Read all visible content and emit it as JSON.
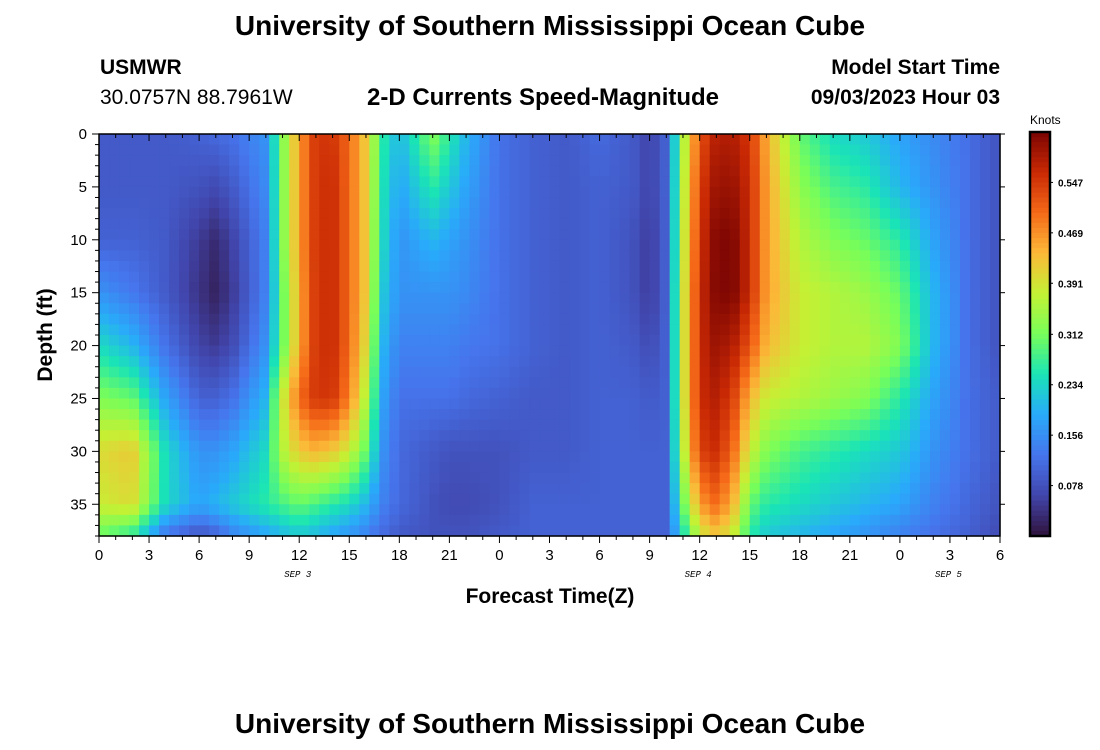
{
  "header": {
    "title": "University of Southern Mississippi Ocean Cube",
    "station": "USMWR",
    "coordinates": "30.0757N  88.7961W",
    "subtitle": "2-D Currents Speed-Magnitude",
    "model_start_label": "Model Start Time",
    "model_start_value": "09/03/2023 Hour 03"
  },
  "footer": {
    "title": "University of Southern Mississippi Ocean Cube"
  },
  "colors": {
    "background": "#ffffff",
    "text": "#000000"
  },
  "chart_data": {
    "type": "heatmap",
    "title": "2-D Currents Speed-Magnitude",
    "xlabel": "Forecast Time(Z)",
    "ylabel": "Depth (ft)",
    "colorbar_label": "Knots",
    "x_range_hours": [
      0,
      54
    ],
    "x_tick_labels": [
      "0",
      "3",
      "6",
      "9",
      "12",
      "15",
      "18",
      "21",
      "0",
      "3",
      "6",
      "9",
      "12",
      "15",
      "18",
      "21",
      "0",
      "3",
      "6"
    ],
    "date_labels": [
      {
        "label": "SEP 3",
        "at_hour": 12
      },
      {
        "label": "SEP 4",
        "at_hour": 36
      },
      {
        "label": "SEP 5",
        "at_hour": 51
      }
    ],
    "y_range_ft": [
      0,
      38
    ],
    "y_tick_labels": [
      "0",
      "5",
      "10",
      "15",
      "20",
      "25",
      "30",
      "35"
    ],
    "y_tick_values": [
      0,
      5,
      10,
      15,
      20,
      25,
      30,
      35
    ],
    "colorbar_range": [
      0.0,
      0.625
    ],
    "colorbar_tick_labels": [
      "0.547",
      "0.469",
      "0.391",
      "0.312",
      "0.234",
      "0.156",
      "0.078"
    ],
    "colorbar_tick_values": [
      0.547,
      0.469,
      0.391,
      0.312,
      0.234,
      0.156,
      0.078
    ],
    "time_hours": [
      0,
      2,
      4,
      6,
      7,
      8,
      10,
      11,
      12,
      13,
      14,
      15,
      16,
      17,
      18,
      20,
      21,
      22,
      24,
      26,
      28,
      30,
      32,
      33,
      34,
      35,
      36,
      37,
      38,
      39,
      40,
      42,
      44,
      46,
      48,
      50,
      52,
      54
    ],
    "depths_ft": [
      0,
      5,
      10,
      15,
      20,
      25,
      30,
      35,
      38
    ],
    "speed_knots": [
      [
        0.09,
        0.09,
        0.09,
        0.1,
        0.11,
        0.12,
        0.16,
        0.32,
        0.46,
        0.55,
        0.55,
        0.5,
        0.42,
        0.26,
        0.2,
        0.32,
        0.26,
        0.2,
        0.12,
        0.1,
        0.09,
        0.11,
        0.09,
        0.06,
        0.1,
        0.35,
        0.52,
        0.58,
        0.58,
        0.55,
        0.45,
        0.3,
        0.24,
        0.22,
        0.18,
        0.15,
        0.12,
        0.08
      ],
      [
        0.09,
        0.09,
        0.09,
        0.08,
        0.07,
        0.09,
        0.15,
        0.32,
        0.46,
        0.55,
        0.56,
        0.5,
        0.42,
        0.25,
        0.18,
        0.26,
        0.22,
        0.18,
        0.12,
        0.1,
        0.09,
        0.1,
        0.09,
        0.06,
        0.1,
        0.36,
        0.54,
        0.6,
        0.6,
        0.56,
        0.46,
        0.33,
        0.28,
        0.26,
        0.2,
        0.16,
        0.12,
        0.08
      ],
      [
        0.1,
        0.1,
        0.09,
        0.05,
        0.03,
        0.06,
        0.14,
        0.32,
        0.46,
        0.55,
        0.56,
        0.5,
        0.42,
        0.24,
        0.16,
        0.2,
        0.18,
        0.16,
        0.12,
        0.1,
        0.09,
        0.1,
        0.08,
        0.05,
        0.1,
        0.37,
        0.55,
        0.62,
        0.62,
        0.56,
        0.46,
        0.36,
        0.32,
        0.3,
        0.26,
        0.18,
        0.12,
        0.08
      ],
      [
        0.16,
        0.13,
        0.09,
        0.04,
        0.02,
        0.05,
        0.14,
        0.3,
        0.45,
        0.55,
        0.56,
        0.5,
        0.42,
        0.22,
        0.16,
        0.16,
        0.16,
        0.15,
        0.12,
        0.1,
        0.09,
        0.1,
        0.08,
        0.05,
        0.1,
        0.38,
        0.56,
        0.62,
        0.62,
        0.56,
        0.46,
        0.38,
        0.36,
        0.34,
        0.3,
        0.2,
        0.12,
        0.08
      ],
      [
        0.24,
        0.2,
        0.12,
        0.06,
        0.05,
        0.07,
        0.16,
        0.3,
        0.45,
        0.55,
        0.56,
        0.5,
        0.4,
        0.2,
        0.14,
        0.14,
        0.14,
        0.13,
        0.12,
        0.1,
        0.09,
        0.1,
        0.09,
        0.07,
        0.1,
        0.38,
        0.56,
        0.6,
        0.58,
        0.52,
        0.44,
        0.38,
        0.36,
        0.36,
        0.32,
        0.2,
        0.12,
        0.08
      ],
      [
        0.32,
        0.3,
        0.18,
        0.1,
        0.1,
        0.12,
        0.2,
        0.38,
        0.5,
        0.55,
        0.55,
        0.48,
        0.36,
        0.18,
        0.12,
        0.12,
        0.12,
        0.11,
        0.1,
        0.09,
        0.09,
        0.1,
        0.1,
        0.09,
        0.1,
        0.38,
        0.56,
        0.58,
        0.54,
        0.44,
        0.38,
        0.36,
        0.34,
        0.32,
        0.26,
        0.18,
        0.12,
        0.09
      ],
      [
        0.4,
        0.42,
        0.24,
        0.16,
        0.16,
        0.18,
        0.24,
        0.36,
        0.42,
        0.44,
        0.42,
        0.38,
        0.3,
        0.16,
        0.11,
        0.09,
        0.08,
        0.08,
        0.08,
        0.09,
        0.09,
        0.1,
        0.1,
        0.1,
        0.1,
        0.36,
        0.54,
        0.56,
        0.5,
        0.38,
        0.32,
        0.28,
        0.26,
        0.24,
        0.22,
        0.16,
        0.12,
        0.09
      ],
      [
        0.38,
        0.4,
        0.24,
        0.18,
        0.2,
        0.22,
        0.26,
        0.28,
        0.3,
        0.28,
        0.26,
        0.24,
        0.2,
        0.14,
        0.11,
        0.08,
        0.07,
        0.07,
        0.08,
        0.1,
        0.1,
        0.1,
        0.1,
        0.1,
        0.1,
        0.3,
        0.46,
        0.5,
        0.44,
        0.3,
        0.26,
        0.24,
        0.22,
        0.2,
        0.18,
        0.14,
        0.11,
        0.08
      ],
      [
        0.3,
        0.26,
        0.12,
        0.08,
        0.1,
        0.14,
        0.18,
        0.2,
        0.22,
        0.2,
        0.18,
        0.16,
        0.14,
        0.11,
        0.09,
        0.08,
        0.08,
        0.08,
        0.09,
        0.1,
        0.1,
        0.1,
        0.1,
        0.1,
        0.1,
        0.24,
        0.38,
        0.42,
        0.38,
        0.26,
        0.22,
        0.2,
        0.18,
        0.16,
        0.14,
        0.12,
        0.1,
        0.07
      ]
    ]
  }
}
